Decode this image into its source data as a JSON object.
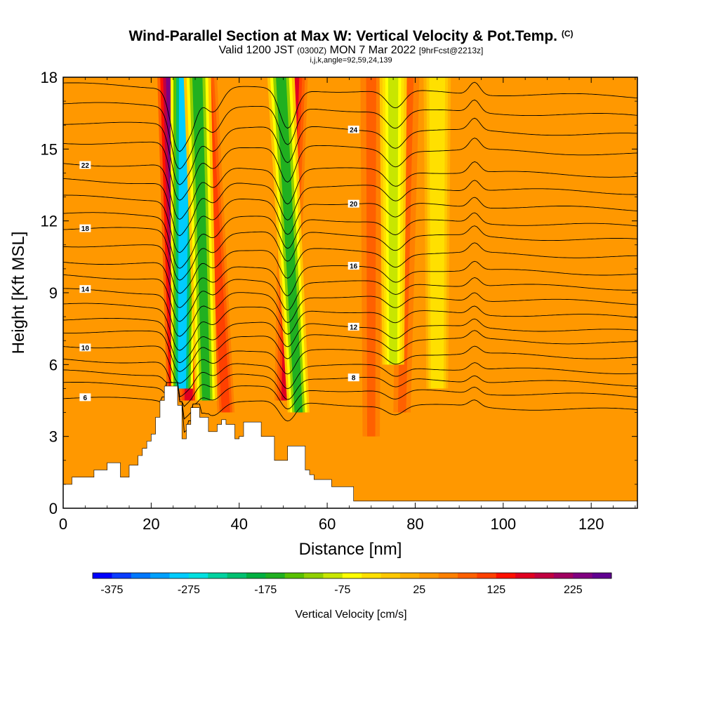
{
  "title": {
    "main": "Wind-Parallel Section at Max W: Vertical Velocity & Pot.Temp.",
    "copyright": "(C)",
    "valid_prefix": "Valid 1200 JST",
    "valid_utc": "(0300Z)",
    "valid_date": "MON 7 Mar 2022",
    "forecast": "[9hrFcst@2213z]",
    "indices": "i,j,k,angle=92,59,24,139"
  },
  "chart_data": {
    "type": "heatmap",
    "xlabel": "Distance [nm]",
    "ylabel": "Height [Kft MSL]",
    "xlim": [
      0,
      130.5
    ],
    "ylim": [
      0,
      18
    ],
    "x_ticks": [
      "0",
      "20",
      "40",
      "60",
      "80",
      "100",
      "120"
    ],
    "x_tick_values": [
      0,
      20,
      40,
      60,
      80,
      100,
      120
    ],
    "y_ticks": [
      "0",
      "3",
      "6",
      "9",
      "12",
      "15",
      "18"
    ],
    "y_tick_values": [
      0,
      3,
      6,
      9,
      12,
      15,
      18
    ],
    "colorbar": {
      "label": "Vertical Velocity [cm/s]",
      "min": -400,
      "max": 275,
      "tick_labels": [
        "-375",
        "-275",
        "-175",
        "-75",
        "25",
        "125",
        "225"
      ],
      "tick_values": [
        -375,
        -275,
        -175,
        -75,
        25,
        125,
        225
      ],
      "colors": [
        "#0000ff",
        "#0a3cff",
        "#0078ff",
        "#00a0ff",
        "#00ccff",
        "#00e0e0",
        "#00d2a0",
        "#00c070",
        "#00b040",
        "#20b020",
        "#58c000",
        "#90d000",
        "#c8e600",
        "#ffff00",
        "#ffe000",
        "#ffc800",
        "#ffb000",
        "#ff9800",
        "#ff8000",
        "#ff6000",
        "#ff4000",
        "#ff1000",
        "#e00020",
        "#c00040",
        "#a00060",
        "#800080",
        "#600090"
      ]
    },
    "background_value": 25,
    "updraft_bands": [
      {
        "x_top": 24.5,
        "x_bottom": 26.0,
        "z_bottom": 5.0,
        "w": 225
      },
      {
        "x_top": 29.5,
        "x_bottom": 28.5,
        "z_bottom": 4.5,
        "w": 150
      },
      {
        "x_top": 32.5,
        "x_bottom": 37.0,
        "z_bottom": 4.0,
        "w": 100
      },
      {
        "x_top": 52.5,
        "x_bottom": 50.5,
        "z_bottom": 4.5,
        "w": 150
      },
      {
        "x_top": 78.5,
        "x_bottom": 77.0,
        "z_bottom": 4.0,
        "w": 75
      },
      {
        "x_top": 70.0,
        "x_bottom": 70.0,
        "z_bottom": 3.0,
        "w": 75
      }
    ],
    "downdraft_bands": [
      {
        "x_top": 27.5,
        "x_bottom": 27.0,
        "z_bottom": 5.0,
        "w": -300
      },
      {
        "x_top": 30.5,
        "x_bottom": 32.5,
        "z_bottom": 4.5,
        "w": -175
      },
      {
        "x_top": 49.5,
        "x_bottom": 53.5,
        "z_bottom": 4.0,
        "w": -175
      },
      {
        "x_top": 75.0,
        "x_bottom": 75.0,
        "z_bottom": 6.0,
        "w": -100
      },
      {
        "x_top": 85.0,
        "x_bottom": 85.0,
        "z_bottom": 5.0,
        "w": -50
      }
    ],
    "terrain": {
      "x": [
        0,
        2,
        2,
        7,
        7,
        10,
        10,
        13,
        13,
        15,
        15,
        17,
        17,
        18,
        18,
        19,
        19,
        20,
        20,
        21,
        21,
        22,
        22,
        23,
        23,
        26,
        26,
        27,
        27,
        28,
        28,
        29,
        29,
        31,
        31,
        33,
        33,
        35,
        35,
        36,
        36,
        37,
        37,
        39,
        39,
        40,
        40,
        41,
        41,
        45,
        45,
        48,
        48,
        51,
        51,
        55,
        55,
        56,
        56,
        57,
        57,
        61,
        61,
        66,
        66,
        130.5
      ],
      "z": [
        1.0,
        1.0,
        1.3,
        1.3,
        1.6,
        1.6,
        1.9,
        1.9,
        1.3,
        1.3,
        1.8,
        1.8,
        2.2,
        2.2,
        2.5,
        2.5,
        2.8,
        2.8,
        3.1,
        3.1,
        3.8,
        3.8,
        4.5,
        4.5,
        5.1,
        5.1,
        4.3,
        4.3,
        2.9,
        2.9,
        3.5,
        3.5,
        4.2,
        4.2,
        3.8,
        3.8,
        3.2,
        3.2,
        3.5,
        3.5,
        3.7,
        3.7,
        3.5,
        3.5,
        2.9,
        2.9,
        3.0,
        3.0,
        3.6,
        3.6,
        3.0,
        3.0,
        2.0,
        2.0,
        2.6,
        2.6,
        1.6,
        1.6,
        1.4,
        1.4,
        1.2,
        1.2,
        0.9,
        0.9,
        0.3,
        0.3
      ]
    },
    "isentropes": {
      "label_every": 2,
      "levels": [
        {
          "value": 6,
          "z_left": 4.6
        },
        {
          "value": 7,
          "z_left": 5.2
        },
        {
          "value": 8,
          "z_left": 5.7
        },
        {
          "value": 9,
          "z_left": 6.2
        },
        {
          "value": 10,
          "z_left": 6.8
        },
        {
          "value": 11,
          "z_left": 7.4
        },
        {
          "value": 12,
          "z_left": 7.9
        },
        {
          "value": 13,
          "z_left": 8.5
        },
        {
          "value": 14,
          "z_left": 9.1
        },
        {
          "value": 15,
          "z_left": 9.7
        },
        {
          "value": 16,
          "z_left": 10.3
        },
        {
          "value": 17,
          "z_left": 11.0
        },
        {
          "value": 18,
          "z_left": 11.7
        },
        {
          "value": 19,
          "z_left": 12.3
        },
        {
          "value": 20,
          "z_left": 13.0
        },
        {
          "value": 21,
          "z_left": 13.7
        },
        {
          "value": 22,
          "z_left": 14.4
        },
        {
          "value": 23,
          "z_left": 15.3
        },
        {
          "value": 24,
          "z_left": 16.1
        },
        {
          "value": 25,
          "z_left": 16.9
        },
        {
          "value": 26,
          "z_left": 17.7
        }
      ]
    }
  }
}
